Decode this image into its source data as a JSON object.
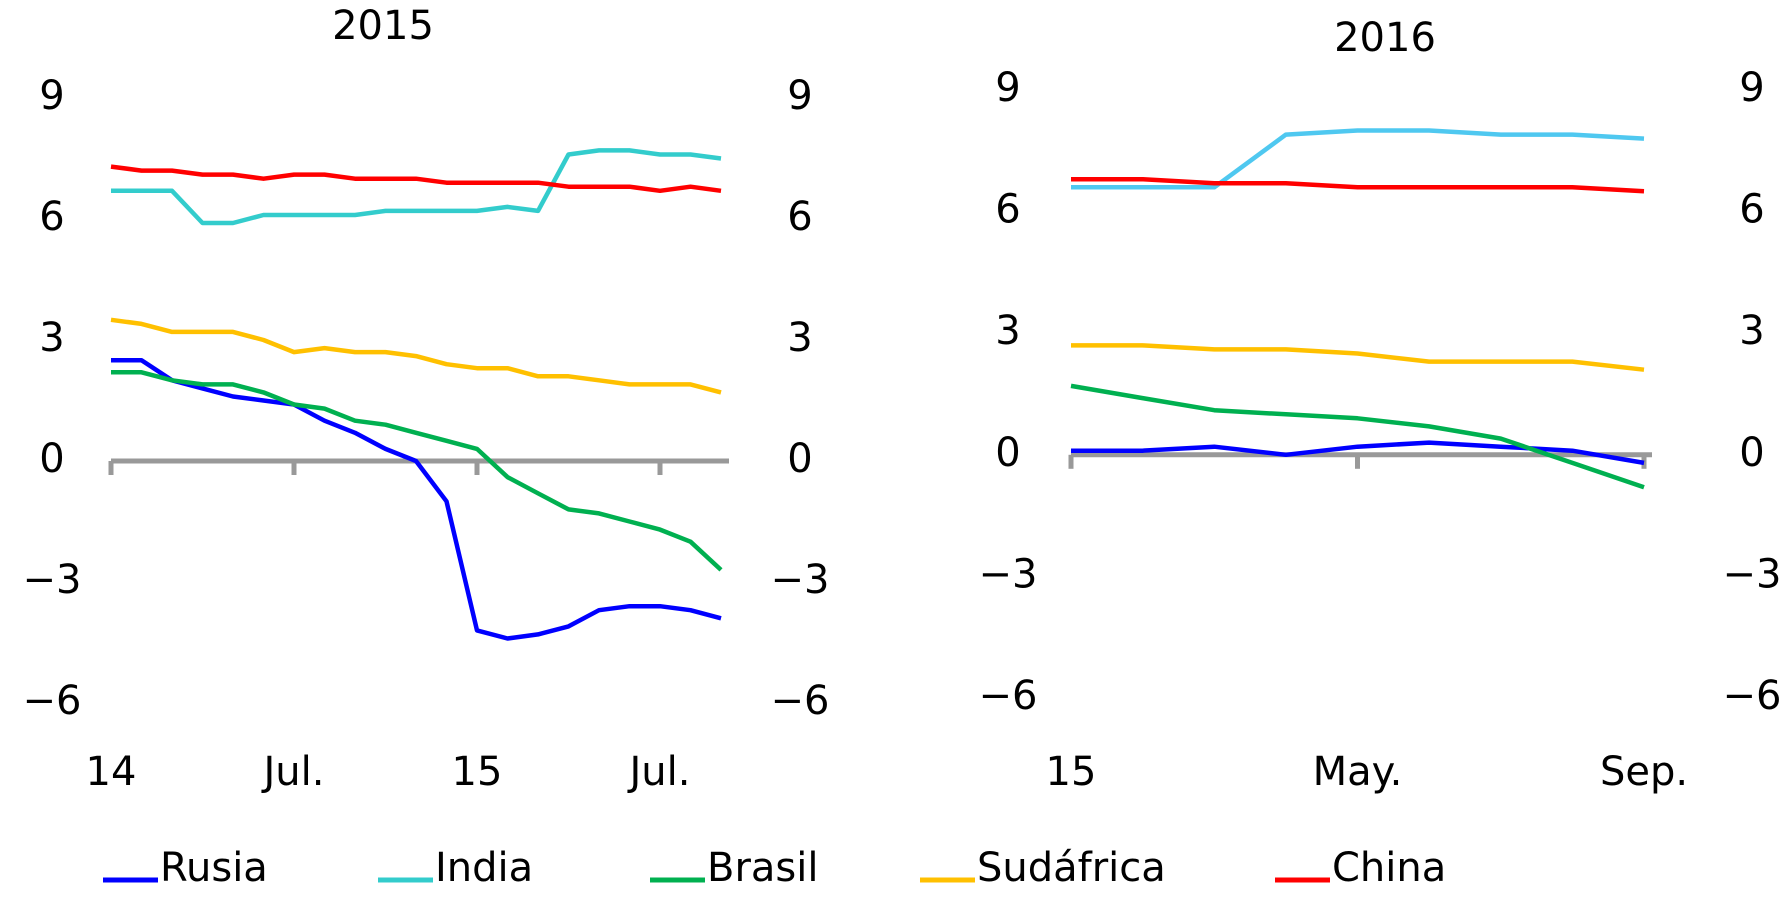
{
  "chart_data": [
    {
      "type": "line",
      "title": "2015",
      "categories": [
        "14",
        null,
        null,
        null,
        null,
        null,
        "Jul.",
        null,
        null,
        null,
        null,
        null,
        "15",
        null,
        null,
        null,
        null,
        null,
        "Jul.",
        null,
        null
      ],
      "ylim": [
        -6,
        9
      ],
      "yticks": [
        {
          "value": -6,
          "label": "−6"
        },
        {
          "value": -3,
          "label": "−3"
        },
        0,
        3,
        6,
        9
      ],
      "series": [
        {
          "name": "Rusia",
          "color": "#0000ff",
          "values": [
            2.5,
            2.5,
            2.0,
            1.8,
            1.6,
            1.5,
            1.4,
            1.0,
            0.7,
            0.3,
            0.0,
            -1.0,
            -4.2,
            -4.4,
            -4.3,
            -4.1,
            -3.7,
            -3.6,
            -3.6,
            -3.7,
            -3.9
          ]
        },
        {
          "name": "India",
          "color": "#33cccc",
          "values": [
            6.7,
            6.7,
            6.7,
            5.9,
            5.9,
            6.1,
            6.1,
            6.1,
            6.1,
            6.2,
            6.2,
            6.2,
            6.2,
            6.3,
            6.2,
            7.6,
            7.7,
            7.7,
            7.6,
            7.6,
            7.5
          ]
        },
        {
          "name": "Brasil",
          "color": "#00b050",
          "values": [
            2.2,
            2.2,
            2.0,
            1.9,
            1.9,
            1.7,
            1.4,
            1.3,
            1.0,
            0.9,
            0.7,
            0.5,
            0.3,
            -0.4,
            -0.8,
            -1.2,
            -1.3,
            -1.5,
            -1.7,
            -2.0,
            -2.7
          ]
        },
        {
          "name": "Sudáfrica",
          "color": "#ffc000",
          "values": [
            3.5,
            3.4,
            3.2,
            3.2,
            3.2,
            3.0,
            2.7,
            2.8,
            2.7,
            2.7,
            2.6,
            2.4,
            2.3,
            2.3,
            2.1,
            2.1,
            2.0,
            1.9,
            1.9,
            1.9,
            1.7
          ]
        },
        {
          "name": "China",
          "color": "#ff0000",
          "values": [
            7.3,
            7.2,
            7.2,
            7.1,
            7.1,
            7.0,
            7.1,
            7.1,
            7.0,
            7.0,
            7.0,
            6.9,
            6.9,
            6.9,
            6.9,
            6.8,
            6.8,
            6.8,
            6.7,
            6.8,
            6.7
          ]
        }
      ]
    },
    {
      "type": "line",
      "title": "2016",
      "categories": [
        "15",
        null,
        null,
        null,
        "May.",
        null,
        null,
        null,
        "Sep."
      ],
      "ylim": [
        -6,
        9
      ],
      "yticks": [
        {
          "value": -6,
          "label": "−6"
        },
        {
          "value": -3,
          "label": "−3"
        },
        0,
        3,
        6,
        9
      ],
      "series": [
        {
          "color": "#0000ff",
          "values": [
            0.1,
            0.1,
            0.2,
            0.0,
            0.2,
            0.3,
            0.2,
            0.1,
            -0.2
          ]
        },
        {
          "color": "#4fc8f0",
          "values": [
            6.6,
            6.6,
            6.6,
            7.9,
            8.0,
            8.0,
            7.9,
            7.9,
            7.8
          ]
        },
        {
          "color": "#00b050",
          "values": [
            1.7,
            1.4,
            1.1,
            1.0,
            0.9,
            0.7,
            0.4,
            -0.2,
            -0.8
          ]
        },
        {
          "color": "#ffc000",
          "values": [
            2.7,
            2.7,
            2.6,
            2.6,
            2.5,
            2.3,
            2.3,
            2.3,
            2.1
          ]
        },
        {
          "color": "#ff0000",
          "values": [
            6.8,
            6.8,
            6.7,
            6.7,
            6.6,
            6.6,
            6.6,
            6.6,
            6.5
          ]
        }
      ]
    }
  ]
}
